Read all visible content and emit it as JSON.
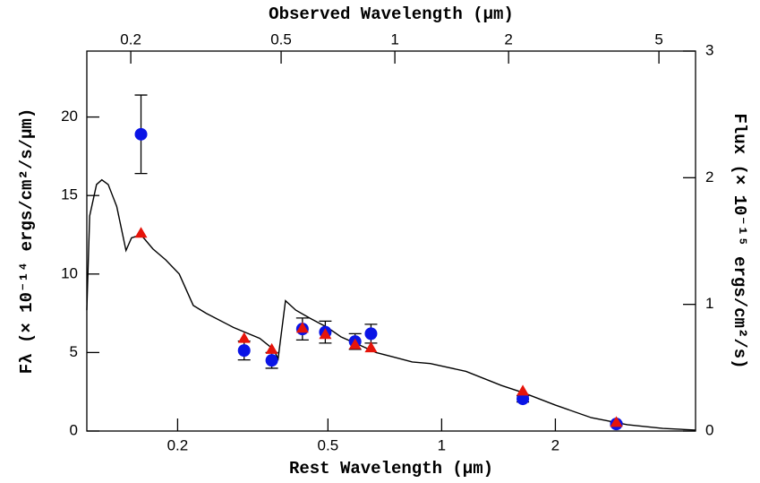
{
  "chart_data": {
    "type": "scatter",
    "xlabel": "Rest Wavelength (μm)",
    "x2label": "Observed Wavelength (μm)",
    "ylabel": "Fλ (× 10⁻¹⁴ ergs/cm²/s/μm)",
    "y2label": "Flux (× 10⁻¹⁵ ergs/cm²/s)",
    "xscale": "log",
    "xlim": [
      0.115,
      4.7
    ],
    "xticks": [
      0.2,
      0.5,
      1,
      2
    ],
    "x2lim": [
      0.153,
      6.25
    ],
    "x2ticks": [
      0.2,
      0.5,
      1,
      2,
      5
    ],
    "ylim": [
      0,
      24.2
    ],
    "yticks": [
      0,
      5,
      10,
      15,
      20
    ],
    "y2lim": [
      0,
      3
    ],
    "y2ticks": [
      0,
      1,
      2,
      3
    ],
    "series": [
      {
        "type": "line",
        "color": "#000000",
        "x": [
          0.115,
          0.117,
          0.122,
          0.126,
          0.131,
          0.138,
          0.146,
          0.151,
          0.16,
          0.172,
          0.186,
          0.202,
          0.22,
          0.238,
          0.281,
          0.33,
          0.359,
          0.369,
          0.386,
          0.411,
          0.447,
          0.498,
          0.541,
          0.603,
          0.671,
          0.75,
          0.836,
          0.933,
          1.16,
          1.44,
          1.64,
          2.0,
          2.49,
          3.1,
          3.85,
          4.7
        ],
        "values": [
          7.7,
          13.7,
          15.7,
          16,
          15.7,
          14.3,
          11.5,
          12.3,
          12.5,
          11.6,
          10.9,
          10,
          8.0,
          7.5,
          6.6,
          5.9,
          5.2,
          4.6,
          8.3,
          7.7,
          7.2,
          6.6,
          6.0,
          5.5,
          5.0,
          4.7,
          4.4,
          4.3,
          3.8,
          2.9,
          2.45,
          1.65,
          0.85,
          0.4,
          0.17,
          0.06
        ]
      },
      {
        "type": "scatter",
        "marker": "circle",
        "color": "#0a14e6",
        "x": [
          0.16,
          0.3,
          0.355,
          0.428,
          0.492,
          0.59,
          0.65,
          1.64,
          2.9
        ],
        "values": [
          18.9,
          5.13,
          4.5,
          6.5,
          6.3,
          5.7,
          6.2,
          2.05,
          0.45
        ],
        "errors": [
          2.5,
          0.6,
          0.5,
          0.7,
          0.7,
          0.5,
          0.6,
          0.2,
          0.1
        ]
      },
      {
        "type": "scatter",
        "marker": "triangle",
        "color": "#e6140a",
        "x": [
          0.16,
          0.3,
          0.355,
          0.428,
          0.492,
          0.59,
          0.65,
          1.64,
          2.9
        ],
        "values": [
          12.6,
          5.9,
          5.2,
          6.55,
          6.15,
          5.5,
          5.3,
          2.55,
          0.55
        ]
      }
    ]
  }
}
